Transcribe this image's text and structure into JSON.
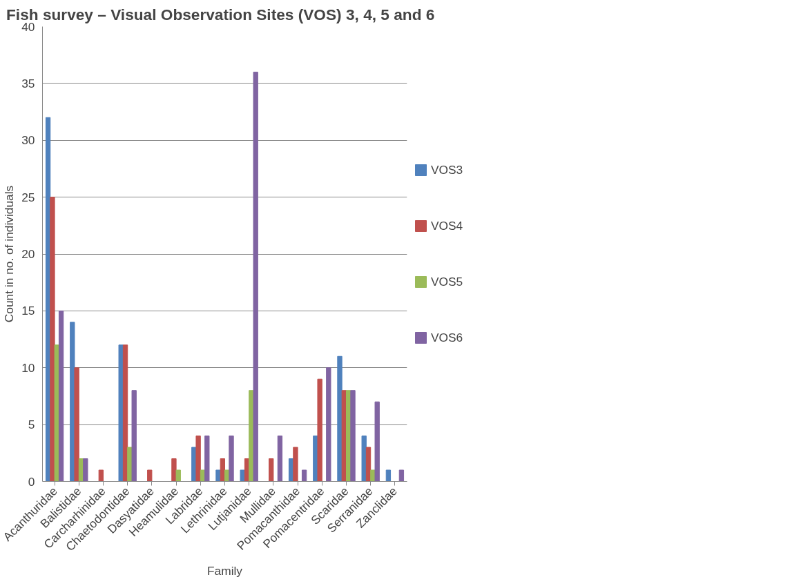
{
  "chart_data": {
    "type": "bar",
    "title": "Fish survey  –  Visual Observation Sites (VOS) 3, 4, 5 and 6",
    "xlabel": "Family",
    "ylabel": "Count in no. of individuals",
    "categories": [
      "Acanthuridae",
      "Balistidae",
      "Carcharhinidae",
      "Chaetodontidae",
      "Dasyatidae",
      "Heamulidae",
      "Labridae",
      "Lethrinidae",
      "Lutjanidae",
      "Mullidae",
      "Pomacanthidae",
      "Pomacentridae",
      "Scaridae",
      "Serranidae",
      "Zanclidae"
    ],
    "series": [
      {
        "name": "VOS3",
        "color": "#4f81bd",
        "values": [
          32,
          14,
          0,
          12,
          0,
          0,
          3,
          1,
          1,
          0,
          2,
          4,
          11,
          4,
          1
        ]
      },
      {
        "name": "VOS4",
        "color": "#c0504d",
        "values": [
          25,
          10,
          1,
          12,
          1,
          2,
          4,
          2,
          2,
          2,
          3,
          9,
          8,
          3,
          0
        ]
      },
      {
        "name": "VOS5",
        "color": "#9bbb59",
        "values": [
          12,
          2,
          0,
          3,
          0,
          1,
          1,
          1,
          8,
          0,
          0,
          0,
          8,
          1,
          0
        ]
      },
      {
        "name": "VOS6",
        "color": "#8064a2",
        "values": [
          15,
          2,
          0,
          8,
          0,
          0,
          4,
          4,
          36,
          4,
          1,
          10,
          8,
          7,
          1
        ]
      }
    ],
    "ylim": [
      0,
      40
    ],
    "yticks": [
      0,
      5,
      10,
      15,
      20,
      25,
      30,
      35,
      40
    ],
    "grid": "y",
    "legend": "right"
  }
}
